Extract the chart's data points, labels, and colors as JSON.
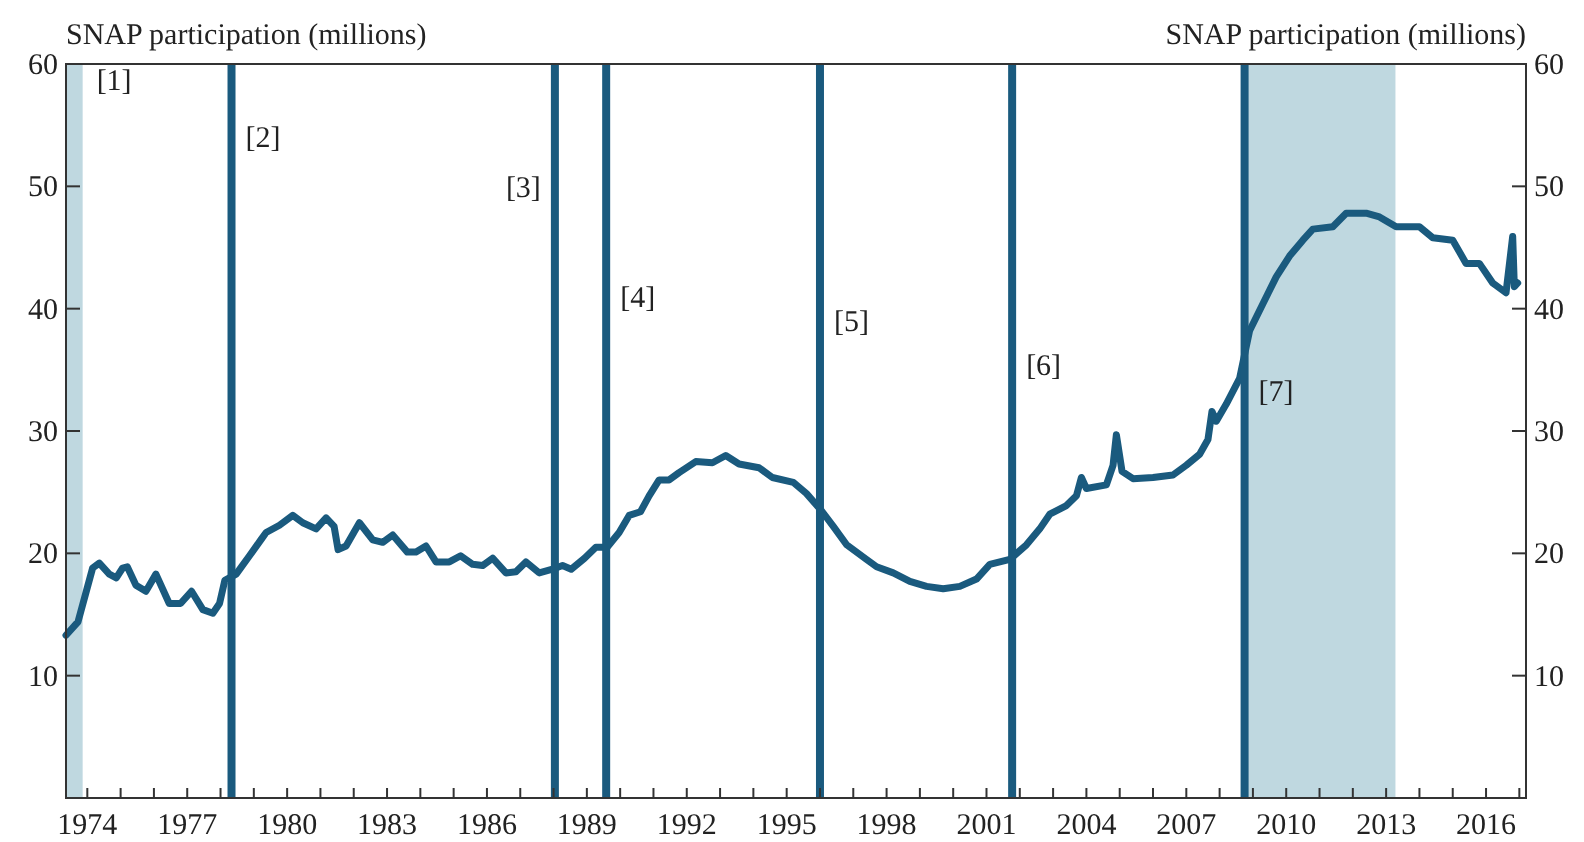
{
  "chart_data": {
    "type": "line",
    "ylabel": "SNAP participation (millions)",
    "y2label": "SNAP participation (millions)",
    "x": [
      1973.36,
      1973.72,
      1974.16,
      1974.36,
      1974.66,
      1974.87,
      1975.06,
      1975.2,
      1975.46,
      1975.76,
      1976.06,
      1976.46,
      1976.8,
      1977.13,
      1977.47,
      1977.77,
      1977.97,
      1978.13,
      1978.47,
      1978.87,
      1979.21,
      1979.37,
      1979.77,
      1980.17,
      1980.47,
      1980.87,
      1981.17,
      1981.41,
      1981.53,
      1981.77,
      1982.17,
      1982.57,
      1982.87,
      1983.17,
      1983.61,
      1983.87,
      1984.17,
      1984.47,
      1984.87,
      1985.21,
      1985.57,
      1985.87,
      1986.17,
      1986.57,
      1986.87,
      1987.17,
      1987.57,
      1987.97,
      1988.27,
      1988.53,
      1988.93,
      1989.27,
      1989.61,
      1989.97,
      1990.27,
      1990.61,
      1990.87,
      1991.17,
      1991.47,
      1991.77,
      1992.27,
      1992.77,
      1993.17,
      1993.57,
      1994.17,
      1994.57,
      1995.2,
      1995.59,
      1996.04,
      1996.4,
      1996.8,
      1997.4,
      1997.7,
      1998.2,
      1998.7,
      1999.2,
      1999.7,
      2000.2,
      2000.7,
      2001.1,
      2001.7,
      2002.2,
      2002.6,
      2002.9,
      2003.4,
      2003.7,
      2003.85,
      2004.0,
      2004.6,
      2004.8,
      2004.9,
      2005.07,
      2005.4,
      2006.0,
      2006.6,
      2007.0,
      2007.4,
      2007.65,
      2007.77,
      2007.9,
      2008.2,
      2008.6,
      2008.9,
      2009.3,
      2009.7,
      2010.1,
      2010.5,
      2010.8,
      2011.4,
      2011.8,
      2012.4,
      2012.8,
      2013.3,
      2014.0,
      2014.4,
      2015.0,
      2015.4,
      2015.8,
      2016.2,
      2016.6,
      2016.8,
      2016.85,
      2016.95
    ],
    "series": [
      {
        "color": "#1a5a7e",
        "values": [
          13.3,
          14.4,
          18.8,
          19.2,
          18.3,
          18.0,
          18.8,
          18.9,
          17.4,
          16.9,
          18.3,
          15.9,
          15.9,
          16.9,
          15.4,
          15.1,
          15.9,
          17.8,
          18.3,
          19.8,
          21.1,
          21.7,
          22.3,
          23.1,
          22.5,
          22.0,
          22.9,
          22.2,
          20.3,
          20.6,
          22.5,
          21.1,
          20.9,
          21.5,
          20.1,
          20.1,
          20.6,
          19.3,
          19.3,
          19.8,
          19.1,
          19.0,
          19.6,
          18.4,
          18.5,
          19.3,
          18.4,
          18.7,
          19.0,
          18.7,
          19.6,
          20.5,
          20.5,
          21.7,
          23.1,
          23.4,
          24.7,
          26.0,
          26.0,
          26.6,
          27.5,
          27.4,
          28.0,
          27.3,
          27.0,
          26.2,
          25.8,
          24.9,
          23.5,
          22.2,
          20.7,
          19.5,
          18.9,
          18.4,
          17.7,
          17.3,
          17.1,
          17.3,
          17.9,
          19.1,
          19.5,
          20.7,
          22.0,
          23.2,
          23.9,
          24.7,
          26.2,
          25.3,
          25.6,
          27.2,
          29.7,
          26.7,
          26.1,
          26.2,
          26.4,
          27.2,
          28.1,
          29.3,
          31.6,
          30.8,
          32.2,
          34.3,
          38.2,
          40.4,
          42.6,
          44.3,
          45.6,
          46.5,
          46.7,
          47.8,
          47.8,
          47.5,
          46.7,
          46.7,
          45.8,
          45.6,
          43.7,
          43.7,
          42.1,
          41.3,
          45.9,
          41.8,
          42.1
        ]
      }
    ],
    "xlim": [
      1973.36,
      2017.2
    ],
    "xticks": [
      {
        "value": 1974,
        "label": "1974"
      },
      {
        "value": 1975,
        "label": null
      },
      {
        "value": 1976,
        "label": null
      },
      {
        "value": 1977,
        "label": "1977"
      },
      {
        "value": 1978,
        "label": null
      },
      {
        "value": 1979,
        "label": null
      },
      {
        "value": 1980,
        "label": "1980"
      },
      {
        "value": 1981,
        "label": null
      },
      {
        "value": 1982,
        "label": null
      },
      {
        "value": 1983,
        "label": "1983"
      },
      {
        "value": 1984,
        "label": null
      },
      {
        "value": 1985,
        "label": null
      },
      {
        "value": 1986,
        "label": "1986"
      },
      {
        "value": 1987,
        "label": null
      },
      {
        "value": 1988,
        "label": null
      },
      {
        "value": 1989,
        "label": "1989"
      },
      {
        "value": 1990,
        "label": null
      },
      {
        "value": 1991,
        "label": null
      },
      {
        "value": 1992,
        "label": "1992"
      },
      {
        "value": 1993,
        "label": null
      },
      {
        "value": 1994,
        "label": null
      },
      {
        "value": 1995,
        "label": "1995"
      },
      {
        "value": 1996,
        "label": null
      },
      {
        "value": 1997,
        "label": null
      },
      {
        "value": 1998,
        "label": "1998"
      },
      {
        "value": 1999,
        "label": null
      },
      {
        "value": 2000,
        "label": null
      },
      {
        "value": 2001,
        "label": "2001"
      },
      {
        "value": 2002,
        "label": null
      },
      {
        "value": 2003,
        "label": null
      },
      {
        "value": 2004,
        "label": "2004"
      },
      {
        "value": 2005,
        "label": null
      },
      {
        "value": 2006,
        "label": null
      },
      {
        "value": 2007,
        "label": "2007"
      },
      {
        "value": 2008,
        "label": null
      },
      {
        "value": 2009,
        "label": null
      },
      {
        "value": 2010,
        "label": "2010"
      },
      {
        "value": 2011,
        "label": null
      },
      {
        "value": 2012,
        "label": null
      },
      {
        "value": 2013,
        "label": "2013"
      },
      {
        "value": 2014,
        "label": null
      },
      {
        "value": 2015,
        "label": null
      },
      {
        "value": 2016,
        "label": "2016"
      },
      {
        "value": 2017,
        "label": null
      }
    ],
    "ylim": [
      0,
      60
    ],
    "yticks": [
      10,
      20,
      30,
      40,
      50,
      60
    ],
    "y2lim": [
      0,
      60
    ],
    "y2ticks": [
      10,
      20,
      30,
      40,
      50,
      60
    ],
    "grid": false,
    "annotations": [
      {
        "text": "[1]",
        "x": 1973.86,
        "y": 58.4
      },
      {
        "text": "[2]",
        "x": 1978.33,
        "y": 53.8
      },
      {
        "text": "[3]",
        "x": 1988.04,
        "y": 49.7
      },
      {
        "text": "[4]",
        "x": 1989.58,
        "y": 40.7
      },
      {
        "text": "[5]",
        "x": 1996.0,
        "y": 38.7
      },
      {
        "text": "[6]",
        "x": 2001.77,
        "y": 35.1
      },
      {
        "text": "[7]",
        "x": 2008.75,
        "y": 33.0
      }
    ],
    "bands": [
      {
        "axis": "x",
        "from": 1973.36,
        "to": 1973.86,
        "color": "#bfd8e0"
      },
      {
        "axis": "x",
        "from": 2008.75,
        "to": 2013.28,
        "color": "#bfd8e0"
      }
    ],
    "ref_lines": [
      {
        "axis": "x",
        "value": 1978.33,
        "color": "#1a5a7e"
      },
      {
        "axis": "x",
        "value": 1988.04,
        "color": "#1a5a7e"
      },
      {
        "axis": "x",
        "value": 1989.58,
        "color": "#1a5a7e"
      },
      {
        "axis": "x",
        "value": 1996.0,
        "color": "#1a5a7e"
      },
      {
        "axis": "x",
        "value": 2001.77,
        "color": "#1a5a7e"
      },
      {
        "axis": "x",
        "value": 2008.75,
        "color": "#1a5a7e"
      }
    ]
  }
}
